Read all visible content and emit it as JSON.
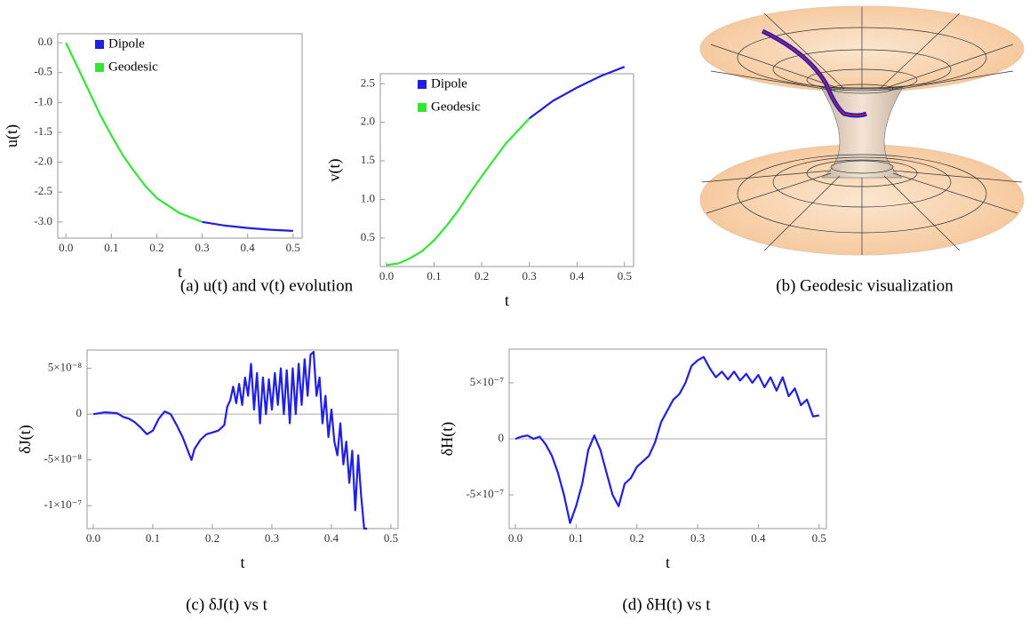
{
  "chart_data": [
    {
      "type": "line",
      "xlabel": "t",
      "ylabel": "u(t)",
      "legend": "upper left",
      "xlim": [
        -0.018,
        0.52
      ],
      "ylim": [
        -3.27,
        0.15
      ],
      "xticks": [
        {
          "value": 0,
          "label": "0.0"
        },
        0.1,
        0.2,
        0.3,
        0.4,
        0.5
      ],
      "yticks": [
        {
          "value": 0,
          "label": "0.0"
        },
        -0.5,
        {
          "value": -1,
          "label": "-1.0"
        },
        -1.5,
        {
          "value": -2,
          "label": "-2.0"
        },
        -2.5,
        {
          "value": -3,
          "label": "-3.0"
        }
      ],
      "series": [
        {
          "name": "Dipole",
          "color": "#1f1fe0",
          "x": [
            0.3,
            0.35,
            0.4,
            0.45,
            0.5
          ],
          "values": [
            -3.0,
            -3.06,
            -3.1,
            -3.13,
            -3.15
          ]
        },
        {
          "name": "Geodesic",
          "color": "#33e633",
          "x": [
            0,
            0.025,
            0.05,
            0.075,
            0.1,
            0.125,
            0.15,
            0.175,
            0.2,
            0.25,
            0.3
          ],
          "values": [
            0,
            -0.4,
            -0.8,
            -1.2,
            -1.55,
            -1.88,
            -2.15,
            -2.4,
            -2.6,
            -2.85,
            -3.0
          ]
        }
      ]
    },
    {
      "type": "line",
      "xlabel": "t",
      "ylabel": "v(t)",
      "legend": "upper left",
      "xlim": [
        -0.013,
        0.519
      ],
      "ylim": [
        0.13,
        2.63
      ],
      "xticks": [
        {
          "value": 0,
          "label": "0.0"
        },
        0.1,
        0.2,
        0.3,
        0.4,
        0.5
      ],
      "yticks": [
        0.5,
        {
          "value": 1,
          "label": "1.0"
        },
        1.5,
        {
          "value": 2,
          "label": "2.0"
        },
        2.5
      ],
      "series": [
        {
          "name": "Dipole",
          "color": "#1f1fe0",
          "x": [
            0.3,
            0.35,
            0.4,
            0.45,
            0.5
          ],
          "values": [
            2.05,
            2.28,
            2.45,
            2.6,
            2.72
          ]
        },
        {
          "name": "Geodesic",
          "color": "#33e633",
          "x": [
            0,
            0.025,
            0.05,
            0.075,
            0.1,
            0.125,
            0.15,
            0.175,
            0.2,
            0.25,
            0.3
          ],
          "values": [
            0.15,
            0.17,
            0.24,
            0.33,
            0.47,
            0.65,
            0.85,
            1.08,
            1.3,
            1.72,
            2.05
          ]
        }
      ]
    },
    {
      "type": "line",
      "xlabel": "t",
      "ylabel": "δJ(t)",
      "zero_line": true,
      "xlim": [
        -0.0104,
        0.512
      ],
      "ylim": [
        -1.25e-07,
        7e-08
      ],
      "xticks": [
        {
          "value": 0,
          "label": "0.0"
        },
        0.1,
        0.2,
        0.3,
        0.4,
        0.5
      ],
      "yticks": [
        {
          "value": 5e-08,
          "label": "5×10⁻⁸"
        },
        0,
        {
          "value": -5e-08,
          "label": "-5×10⁻⁸"
        },
        {
          "value": -1e-07,
          "label": "-1×10⁻⁷"
        }
      ],
      "series": [
        {
          "color": "#1f1fe8",
          "x": [
            0,
            0.02,
            0.04,
            0.05,
            0.06,
            0.07,
            0.08,
            0.09,
            0.1,
            0.11,
            0.12,
            0.13,
            0.14,
            0.15,
            0.16,
            0.165,
            0.17,
            0.18,
            0.19,
            0.2,
            0.21,
            0.22,
            0.225,
            0.23,
            0.235,
            0.24,
            0.245,
            0.25,
            0.255,
            0.26,
            0.265,
            0.27,
            0.275,
            0.28,
            0.285,
            0.29,
            0.295,
            0.3,
            0.305,
            0.31,
            0.315,
            0.32,
            0.325,
            0.33,
            0.335,
            0.34,
            0.345,
            0.35,
            0.355,
            0.36,
            0.365,
            0.37,
            0.375,
            0.38,
            0.385,
            0.39,
            0.395,
            0.4,
            0.405,
            0.41,
            0.415,
            0.42,
            0.425,
            0.43,
            0.435,
            0.44,
            0.445,
            0.45,
            0.455,
            0.46
          ],
          "values": [
            0,
            2e-09,
            1e-09,
            -3e-09,
            -5e-09,
            -9e-09,
            -1.5e-08,
            -2.2e-08,
            -1.8e-08,
            -5e-09,
            3e-09,
            0,
            -1.2e-08,
            -2.5e-08,
            -4.2e-08,
            -5e-08,
            -3.8e-08,
            -2.8e-08,
            -2.2e-08,
            -2e-08,
            -1.8e-08,
            -1.2e-08,
            8e-09,
            1.5e-08,
            3e-08,
            1.2e-08,
            3.3e-08,
            1e-08,
            4e-08,
            2e-08,
            5.5e-08,
            5e-09,
            4.5e-08,
            -1e-08,
            4e-08,
            0,
            3.8e-08,
            5e-09,
            4.5e-08,
            1e-08,
            5e-08,
            0,
            4.8e-08,
            -1e-08,
            5e-08,
            0,
            5.5e-08,
            1e-08,
            6e-08,
            2e-08,
            6.5e-08,
            6.8e-08,
            2e-08,
            4e-08,
            -1e-08,
            2e-08,
            -2.5e-08,
            5e-09,
            -3e-08,
            -4.5e-08,
            -1e-08,
            -5.5e-08,
            -3e-08,
            -7.5e-08,
            -4e-08,
            -1.05e-07,
            -4.5e-08,
            -9e-08,
            -1.25e-07,
            -1.25e-07
          ]
        }
      ]
    },
    {
      "type": "line",
      "xlabel": "t",
      "ylabel": "δH(t)",
      "zero_line": true,
      "xlim": [
        -0.0102,
        0.512
      ],
      "ylim": [
        -8e-07,
        8e-07
      ],
      "xticks": [
        {
          "value": 0,
          "label": "0.0"
        },
        0.1,
        0.2,
        0.3,
        0.4,
        0.5
      ],
      "yticks": [
        {
          "value": 5e-07,
          "label": "5×10⁻⁷"
        },
        0,
        {
          "value": -5e-07,
          "label": "-5×10⁻⁷"
        }
      ],
      "series": [
        {
          "color": "#1f1fe8",
          "x": [
            0,
            0.01,
            0.02,
            0.03,
            0.04,
            0.05,
            0.06,
            0.07,
            0.08,
            0.09,
            0.1,
            0.11,
            0.12,
            0.13,
            0.14,
            0.15,
            0.16,
            0.17,
            0.18,
            0.19,
            0.2,
            0.21,
            0.22,
            0.23,
            0.24,
            0.25,
            0.26,
            0.27,
            0.28,
            0.29,
            0.3,
            0.31,
            0.32,
            0.33,
            0.34,
            0.35,
            0.36,
            0.37,
            0.38,
            0.39,
            0.4,
            0.41,
            0.42,
            0.43,
            0.44,
            0.45,
            0.46,
            0.47,
            0.48,
            0.49,
            0.5
          ],
          "values": [
            0,
            2e-08,
            3e-08,
            0,
            2e-08,
            -5e-08,
            -1.5e-07,
            -3e-07,
            -5e-07,
            -7.5e-07,
            -6e-07,
            -4e-07,
            -1e-07,
            3e-08,
            -1e-07,
            -3e-07,
            -5e-07,
            -6e-07,
            -4e-07,
            -3.5e-07,
            -2.5e-07,
            -2e-07,
            -1.5e-07,
            -3e-08,
            1.5e-07,
            2.5e-07,
            3.5e-07,
            4e-07,
            5e-07,
            6.5e-07,
            7e-07,
            7.3e-07,
            6.3e-07,
            5.5e-07,
            6e-07,
            5.3e-07,
            6e-07,
            5.2e-07,
            5.8e-07,
            5e-07,
            5.7e-07,
            4.6e-07,
            5.5e-07,
            4.3e-07,
            5.5e-07,
            3.8e-07,
            4.5e-07,
            3e-07,
            3.5e-07,
            2e-07,
            2.1e-07
          ]
        }
      ]
    }
  ],
  "captions": {
    "a": "(a) u(t) and v(t) evolution",
    "b": "(b) Geodesic visualization",
    "c": "(c) δJ(t) vs t",
    "d": "(d) δH(t) vs t"
  }
}
